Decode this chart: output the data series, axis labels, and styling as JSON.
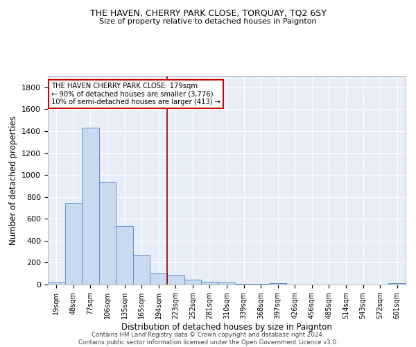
{
  "title1": "THE HAVEN, CHERRY PARK CLOSE, TORQUAY, TQ2 6SY",
  "title2": "Size of property relative to detached houses in Paignton",
  "xlabel": "Distribution of detached houses by size in Paignton",
  "ylabel": "Number of detached properties",
  "footer1": "Contains HM Land Registry data © Crown copyright and database right 2024.",
  "footer2": "Contains public sector information licensed under the Open Government Licence v3.0.",
  "bar_labels": [
    "19sqm",
    "48sqm",
    "77sqm",
    "106sqm",
    "135sqm",
    "165sqm",
    "194sqm",
    "223sqm",
    "252sqm",
    "281sqm",
    "310sqm",
    "339sqm",
    "368sqm",
    "397sqm",
    "426sqm",
    "456sqm",
    "485sqm",
    "514sqm",
    "543sqm",
    "572sqm",
    "601sqm"
  ],
  "bar_values": [
    20,
    740,
    1430,
    935,
    535,
    265,
    103,
    90,
    47,
    27,
    20,
    8,
    5,
    13,
    3,
    3,
    0,
    0,
    0,
    0,
    12
  ],
  "bar_color": "#c9d9f0",
  "bar_edge_color": "#6090c8",
  "bg_color": "#e8eef8",
  "grid_color": "#ffffff",
  "vline_x": 6.5,
  "vline_color": "#8b0000",
  "annotation_title": "THE HAVEN CHERRY PARK CLOSE: 179sqm",
  "annotation_line1": "← 90% of detached houses are smaller (3,776)",
  "annotation_line2": "10% of semi-detached houses are larger (413) →",
  "annotation_box_color": "#ffffff",
  "annotation_box_edge": "#cc0000",
  "ylim": [
    0,
    1900
  ],
  "yticks": [
    0,
    200,
    400,
    600,
    800,
    1000,
    1200,
    1400,
    1600,
    1800
  ]
}
